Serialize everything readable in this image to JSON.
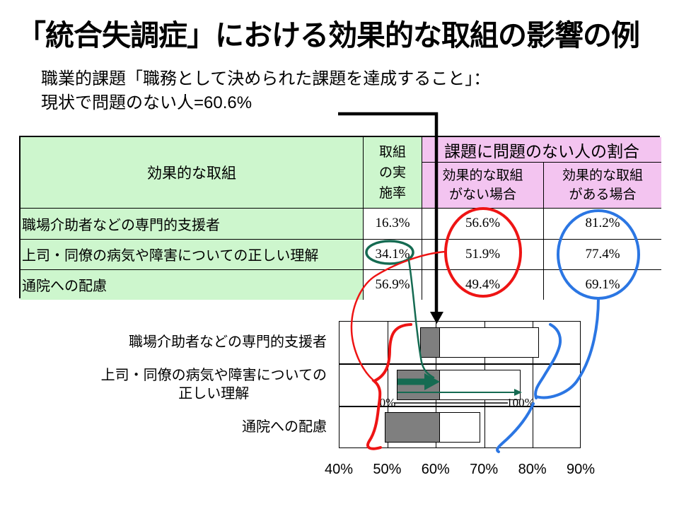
{
  "title": "「統合失調症」における効果的な取組の影響の例",
  "subtitle": "職業的課題「職務として決められた課題を達成すること」：\n現状で問題のない人=60.6%",
  "table": {
    "headers": {
      "measure": "効果的な取組",
      "rate": "取組\nの実\n施率",
      "group": "課題に問題のない人の割合",
      "without": "効果的な取組\nがない場合",
      "with": "効果的な取組\nがある場合"
    },
    "rows": [
      {
        "label": "職場介助者などの専門的支援者",
        "rate": "16.3%",
        "without": "56.6%",
        "with": "81.2%"
      },
      {
        "label": "上司・同僚の病気や障害についての正しい理解",
        "rate": "34.1%",
        "without": "51.9%",
        "with": "77.4%"
      },
      {
        "label": "通院への配慮",
        "rate": "56.9%",
        "without": "49.4%",
        "with": "69.1%"
      }
    ]
  },
  "chart_data": {
    "type": "bar",
    "orientation": "horizontal",
    "categories": [
      "職場介助者などの専門的支援者",
      "上司・同僚の病気や障害についての\n正しい理解",
      "通院への配慮"
    ],
    "series": [
      {
        "name": "効果的な取組がない場合",
        "values": [
          56.6,
          51.9,
          49.4
        ]
      },
      {
        "name": "現状で問題のない人",
        "values": [
          60.6,
          60.6,
          60.6
        ]
      },
      {
        "name": "効果的な取組がある場合",
        "values": [
          81.2,
          77.4,
          69.1
        ]
      }
    ],
    "status_value": 60.6,
    "xlim": [
      40,
      90
    ],
    "xticks": [
      "40%",
      "50%",
      "60%",
      "70%",
      "80%",
      "90%"
    ],
    "xtick_values": [
      40,
      50,
      60,
      70,
      80,
      90
    ],
    "grid": true,
    "legend": "none",
    "scale_labels": {
      "zero": "0%",
      "hundred": "100%"
    }
  },
  "colors": {
    "table_green": "#CDF6CD",
    "table_pink": "#F3C4F0",
    "bar_gray": "#7F7F7F",
    "annotation_red": "#EE1414",
    "annotation_blue": "#2B76E3",
    "annotation_teal": "#156B52",
    "annotation_black": "#000000"
  }
}
